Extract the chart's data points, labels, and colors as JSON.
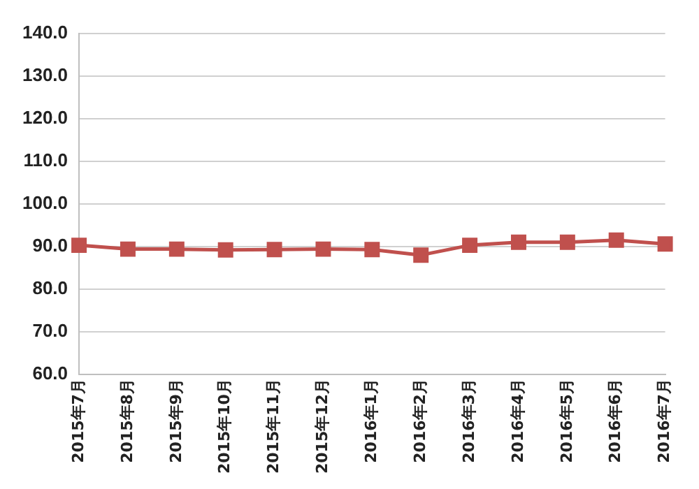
{
  "chart_data": {
    "type": "line",
    "categories": [
      "2015年7月",
      "2015年8月",
      "2015年9月",
      "2015年10月",
      "2015年11月",
      "2015年12月",
      "2016年1月",
      "2016年2月",
      "2016年3月",
      "2016年4月",
      "2016年5月",
      "2016年6月",
      "2016年7月"
    ],
    "series": [
      {
        "color": "#c0504d",
        "values": [
          90.3,
          89.4,
          89.4,
          89.2,
          89.3,
          89.4,
          89.3,
          88.0,
          90.3,
          91.0,
          91.0,
          91.5,
          90.6
        ]
      }
    ],
    "ylim": [
      60,
      140
    ],
    "yticks": [
      {
        "value": 60,
        "label": "60.0"
      },
      {
        "value": 70,
        "label": "70.0"
      },
      {
        "value": 80,
        "label": "80.0"
      },
      {
        "value": 90,
        "label": "90.0"
      },
      {
        "value": 100,
        "label": "100.0"
      },
      {
        "value": 110,
        "label": "110.0"
      },
      {
        "value": 120,
        "label": "120.0"
      },
      {
        "value": 130,
        "label": "130.0"
      },
      {
        "value": 140,
        "label": "140.0"
      }
    ],
    "grid": "y",
    "marker": "square",
    "line_style": "solid",
    "legend": false
  }
}
